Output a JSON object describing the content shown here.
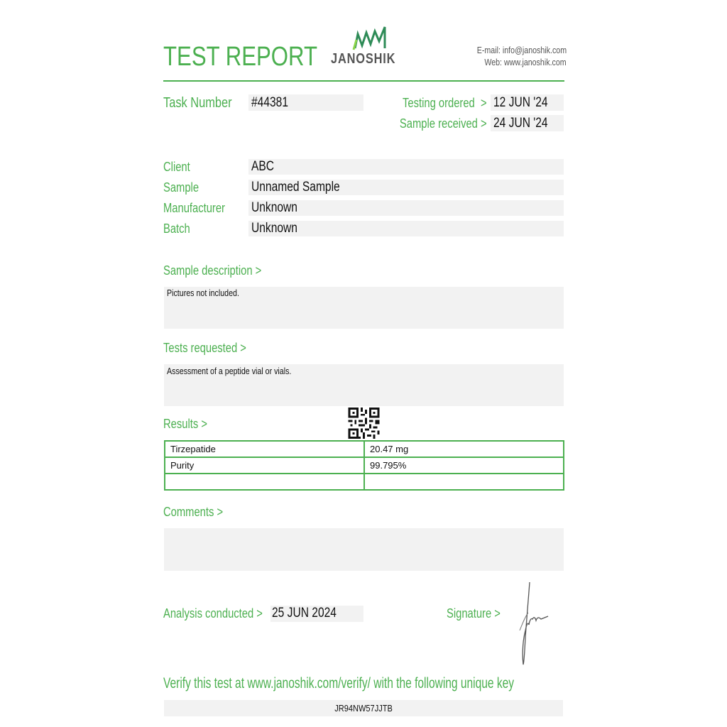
{
  "header": {
    "title": "TEST REPORT",
    "logo_text": "JANOSHIK",
    "email_label": "E-mail:",
    "email": "info@janoshik.com",
    "web_label": "Web:",
    "web": "www.janoshik.com"
  },
  "task": {
    "label": "Task Number",
    "value": "#44381",
    "testing_ordered_label": "Testing ordered  >",
    "testing_ordered": "12 JUN '24",
    "sample_received_label": "Sample received >",
    "sample_received": "24 JUN '24"
  },
  "info": [
    {
      "label": "Client",
      "value": "ABC"
    },
    {
      "label": "Sample",
      "value": "Unnamed Sample"
    },
    {
      "label": "Manufacturer",
      "value": "Unknown"
    },
    {
      "label": "Batch",
      "value": "Unknown"
    }
  ],
  "sample_description": {
    "label": "Sample description >",
    "text": "Pictures not included."
  },
  "tests_requested": {
    "label": "Tests requested >",
    "text": "Assessment of a peptide vial or vials."
  },
  "results": {
    "label": "Results >",
    "rows": [
      [
        "Tirzepatide",
        "20.47 mg"
      ],
      [
        "Purity",
        "99.795%"
      ],
      [
        "",
        ""
      ]
    ]
  },
  "comments": {
    "label": "Comments >",
    "text": ""
  },
  "analysis": {
    "label": "Analysis conducted >",
    "date": "25 JUN 2024"
  },
  "signature": {
    "label": "Signature >"
  },
  "verify": {
    "text": "Verify this test at www.janoshik.com/verify/ with the following unique key",
    "key": "JR94NW57JJTB"
  },
  "colors": {
    "accent": "#4cb050",
    "field_bg": "#f2f2f2"
  }
}
